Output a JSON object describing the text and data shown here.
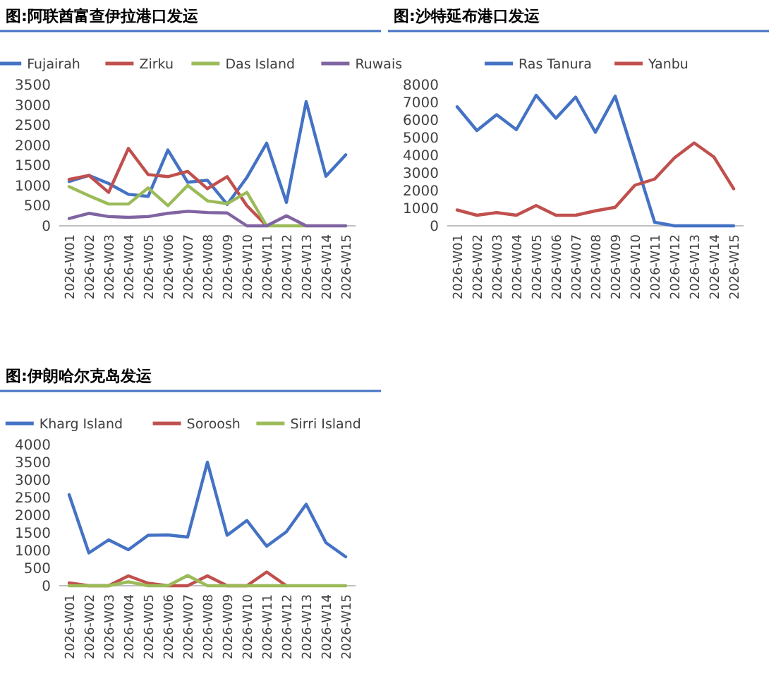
{
  "chart_data": [
    {
      "type": "line",
      "title": "图:阿联酋富查伊拉港口发运",
      "legend": "top",
      "grid": false,
      "marker": "none",
      "categories": [
        "2026-W01",
        "2026-W02",
        "2026-W03",
        "2026-W04",
        "2026-W05",
        "2026-W06",
        "2026-W07",
        "2026-W08",
        "2026-W09",
        "2026-W10",
        "2026-W11",
        "2026-W12",
        "2026-W13",
        "2026-W14",
        "2026-W15"
      ],
      "ylim": [
        0,
        3500
      ],
      "yticks": [
        0,
        500,
        1000,
        1500,
        2000,
        2500,
        3000,
        3500
      ],
      "series": [
        {
          "name": "Fujairah",
          "color": "#4472c4",
          "values": [
            1100,
            1250,
            1050,
            780,
            730,
            1880,
            1080,
            1130,
            530,
            1200,
            2050,
            580,
            3080,
            1230,
            1760
          ]
        },
        {
          "name": "Zirku",
          "color": "#c0504d",
          "values": [
            1150,
            1250,
            830,
            1920,
            1270,
            1220,
            1350,
            920,
            1220,
            500,
            0,
            null,
            null,
            null,
            null
          ]
        },
        {
          "name": "Das Island",
          "color": "#9bbb59",
          "values": [
            970,
            750,
            540,
            540,
            940,
            500,
            1000,
            620,
            550,
            830,
            0,
            0,
            0,
            null,
            null
          ]
        },
        {
          "name": "Ruwais",
          "color": "#8064a2",
          "values": [
            180,
            310,
            230,
            210,
            230,
            310,
            360,
            330,
            320,
            0,
            0,
            250,
            0,
            0,
            0
          ]
        }
      ]
    },
    {
      "type": "line",
      "title": "图:沙特延布港口发运",
      "legend": "top",
      "grid": false,
      "marker": "none",
      "categories": [
        "2026-W01",
        "2026-W02",
        "2026-W03",
        "2026-W04",
        "2026-W05",
        "2026-W06",
        "2026-W07",
        "2026-W08",
        "2026-W09",
        "2026-W10",
        "2026-W11",
        "2026-W12",
        "2026-W13",
        "2026-W14",
        "2026-W15"
      ],
      "ylim": [
        0,
        8000
      ],
      "yticks": [
        0,
        1000,
        2000,
        3000,
        4000,
        5000,
        6000,
        7000,
        8000
      ],
      "series": [
        {
          "name": "Ras Tanura",
          "color": "#4472c4",
          "values": [
            6750,
            5400,
            6300,
            5450,
            7400,
            6100,
            7300,
            5300,
            7350,
            3800,
            200,
            0,
            0,
            0,
            0
          ]
        },
        {
          "name": "Yanbu",
          "color": "#c0504d",
          "values": [
            900,
            600,
            750,
            600,
            1150,
            600,
            600,
            850,
            1050,
            2300,
            2650,
            3850,
            4700,
            3900,
            2100
          ]
        }
      ]
    },
    {
      "type": "line",
      "title": "图:伊朗哈尔克岛发运",
      "legend": "top",
      "grid": false,
      "marker": "none",
      "categories": [
        "2026-W01",
        "2026-W02",
        "2026-W03",
        "2026-W04",
        "2026-W05",
        "2026-W06",
        "2026-W07",
        "2026-W08",
        "2026-W09",
        "2026-W10",
        "2026-W11",
        "2026-W12",
        "2026-W13",
        "2026-W14",
        "2026-W15"
      ],
      "ylim": [
        0,
        4000
      ],
      "yticks": [
        0,
        500,
        1000,
        1500,
        2000,
        2500,
        3000,
        3500,
        4000
      ],
      "series": [
        {
          "name": "Kharg Island",
          "color": "#4472c4",
          "values": [
            2580,
            930,
            1300,
            1020,
            1430,
            1440,
            1380,
            3500,
            1430,
            1850,
            1120,
            1530,
            2310,
            1220,
            820
          ]
        },
        {
          "name": "Soroosh",
          "color": "#c0504d",
          "values": [
            80,
            0,
            0,
            280,
            70,
            0,
            0,
            280,
            0,
            0,
            390,
            0,
            null,
            null,
            null
          ]
        },
        {
          "name": "Sirri Island",
          "color": "#9bbb59",
          "values": [
            0,
            0,
            0,
            110,
            0,
            0,
            290,
            0,
            0,
            0,
            0,
            0,
            0,
            0,
            0
          ]
        }
      ]
    }
  ]
}
